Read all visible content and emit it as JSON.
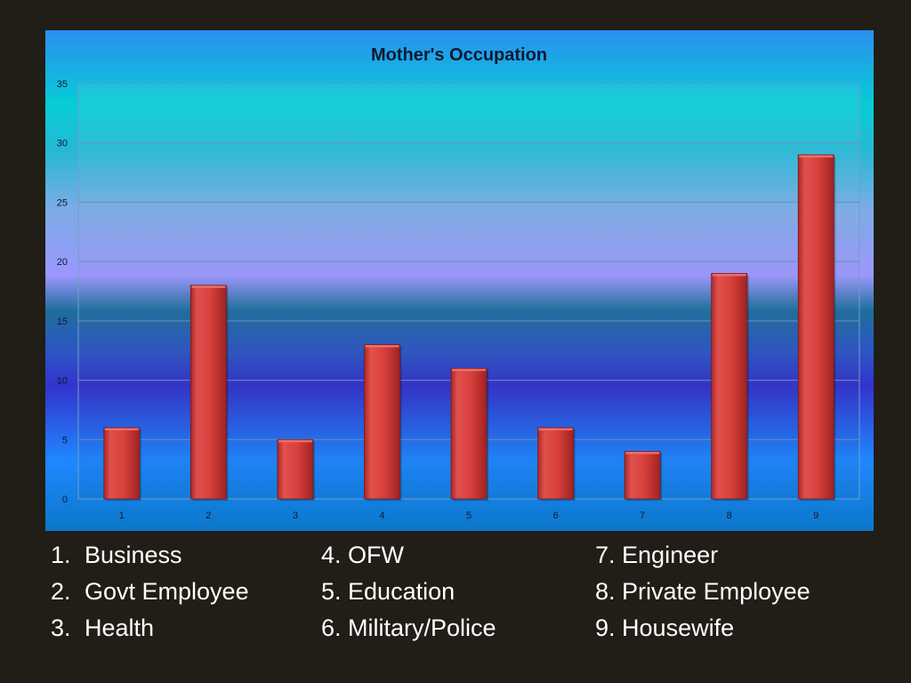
{
  "chart_data": {
    "type": "bar",
    "title": "Mother's Occupation",
    "categories": [
      "1",
      "2",
      "3",
      "4",
      "5",
      "6",
      "7",
      "8",
      "9"
    ],
    "values": [
      6,
      18,
      5,
      13,
      11,
      6,
      4,
      19,
      29
    ],
    "ylim": [
      0,
      35
    ],
    "yticks": [
      0,
      5,
      10,
      15,
      20,
      25,
      30,
      35
    ],
    "grid": true,
    "bar_color": "#d9403d",
    "legend_position": "none"
  },
  "legend": {
    "columns": [
      [
        {
          "num": "1.",
          "label": "Business"
        },
        {
          "num": "2.",
          "label": "Govt Employee"
        },
        {
          "num": "3.",
          "label": "Health"
        }
      ],
      [
        {
          "num": "4.",
          "label": "OFW"
        },
        {
          "num": "5.",
          "label": "Education"
        },
        {
          "num": "6.",
          "label": "Military/Police"
        }
      ],
      [
        {
          "num": "7.",
          "label": "Engineer"
        },
        {
          "num": "8.",
          "label": "Private Employee"
        },
        {
          "num": "9.",
          "label": "Housewife"
        }
      ]
    ]
  }
}
